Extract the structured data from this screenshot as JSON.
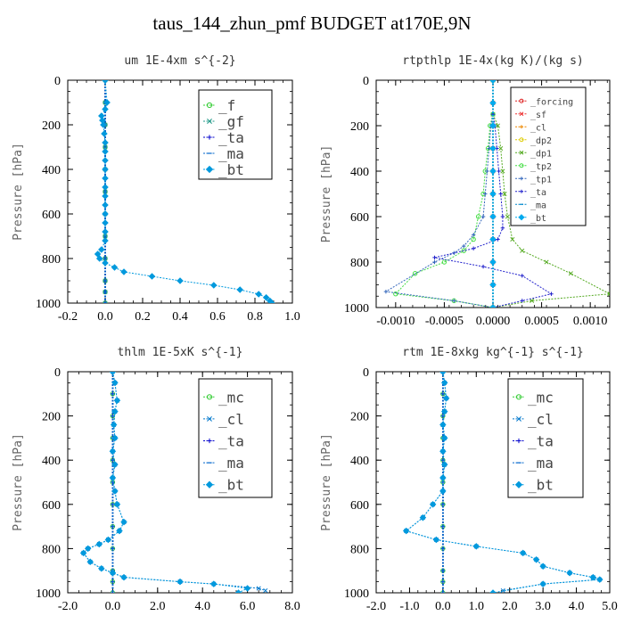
{
  "figure_title": "taus_144_zhun_pmf  BUDGET at170E,9N",
  "chart_data": [
    {
      "type": "line",
      "title": "um  1E-4xm s^{-2}",
      "ylabel": "Pressure [hPa]",
      "xlim": [
        -0.2,
        1.0
      ],
      "ylim": [
        1000,
        0
      ],
      "xticks": [
        "-0.2",
        "0.0",
        "0.2",
        "0.4",
        "0.6",
        "0.8",
        "1.0"
      ],
      "yticks": [
        "0",
        "200",
        "400",
        "600",
        "800",
        "1000"
      ],
      "legend": {
        "placement": "top-right",
        "entries": [
          "_f",
          "_gf",
          "_ta",
          "_ma",
          "_bt"
        ]
      },
      "series": [
        {
          "name": "_f",
          "color": "#33cc33",
          "marker": "circle",
          "x": [
            0,
            0,
            0,
            0,
            0,
            0,
            0,
            0,
            0,
            0,
            0,
            0
          ],
          "y": [
            0,
            100,
            200,
            300,
            400,
            500,
            600,
            700,
            800,
            900,
            950,
            1000
          ]
        },
        {
          "name": "_gf",
          "color": "#229988",
          "marker": "x",
          "x": [
            0,
            0,
            0,
            0,
            0,
            0,
            0,
            0,
            0,
            0,
            0,
            0
          ],
          "y": [
            0,
            100,
            200,
            300,
            400,
            500,
            600,
            700,
            800,
            900,
            950,
            1000
          ]
        },
        {
          "name": "_ta",
          "color": "#0000cc",
          "marker": "plus",
          "x": [
            0,
            0,
            0,
            0,
            0,
            0,
            0,
            0,
            0,
            0,
            0,
            0
          ],
          "y": [
            0,
            100,
            200,
            300,
            400,
            500,
            600,
            700,
            800,
            900,
            950,
            1000
          ]
        },
        {
          "name": "_ma",
          "color": "#0066cc",
          "marker": "dash",
          "x": [
            0,
            0,
            0,
            0,
            0,
            0,
            0,
            0,
            0,
            0,
            0,
            0
          ],
          "y": [
            0,
            100,
            200,
            300,
            400,
            500,
            600,
            700,
            800,
            900,
            950,
            1000
          ]
        },
        {
          "name": "_bt",
          "color": "#0099dd",
          "marker": "diamond",
          "x": [
            0,
            0.01,
            0.0,
            -0.02,
            -0.015,
            -0.01,
            -0.005,
            0.0,
            0.0,
            0.0,
            0.0,
            0.0,
            0.0,
            0.0,
            0.0,
            0.0,
            0.0,
            0.0,
            0.0,
            -0.02,
            -0.04,
            -0.03,
            0.0,
            0.05,
            0.1,
            0.25,
            0.4,
            0.58,
            0.72,
            0.82,
            0.86,
            0.88,
            0.89
          ],
          "y": [
            0,
            100,
            130,
            160,
            180,
            200,
            240,
            280,
            320,
            360,
            400,
            440,
            480,
            520,
            560,
            600,
            640,
            680,
            720,
            760,
            780,
            800,
            820,
            840,
            860,
            880,
            900,
            920,
            940,
            960,
            975,
            990,
            1000
          ]
        }
      ]
    },
    {
      "type": "line",
      "title": "rtpthlp  1E-4x(kg K)/(kg s)",
      "ylabel": "Pressure [hPa]",
      "xlim": [
        -0.0012,
        0.0012
      ],
      "ylim": [
        1000,
        0
      ],
      "xticks": [
        "-0.0010",
        "-0.0005",
        "0.0000",
        "0.0005",
        "0.0010"
      ],
      "yticks": [
        "0",
        "200",
        "400",
        "600",
        "800",
        "1000"
      ],
      "legend": {
        "placement": "top-right",
        "entries": [
          "_forcing",
          "_sf",
          "_cl",
          "_dp2",
          "_dp1",
          "_tp2",
          "_tp1",
          "_ta",
          "_ma",
          "_bt"
        ]
      },
      "series": [
        {
          "name": "_forcing",
          "color": "#dd2222",
          "marker": "circle",
          "x": [
            0,
            0,
            0,
            0,
            0,
            0,
            0,
            0,
            0,
            0,
            0
          ],
          "y": [
            0,
            100,
            200,
            300,
            400,
            500,
            600,
            700,
            800,
            900,
            1000
          ]
        },
        {
          "name": "_sf",
          "color": "#ee3333",
          "marker": "x",
          "x": [
            0,
            0,
            0,
            0,
            0,
            0,
            0,
            0,
            0,
            0,
            0
          ],
          "y": [
            0,
            100,
            200,
            300,
            400,
            500,
            600,
            700,
            800,
            900,
            1000
          ]
        },
        {
          "name": "_cl",
          "color": "#ee8800",
          "marker": "plus",
          "x": [
            0,
            0,
            0,
            0,
            0,
            0,
            0,
            0,
            0,
            0,
            0
          ],
          "y": [
            0,
            100,
            200,
            300,
            400,
            500,
            600,
            700,
            800,
            900,
            1000
          ]
        },
        {
          "name": "_dp2",
          "color": "#ddcc00",
          "marker": "circle",
          "x": [
            0,
            0,
            0,
            0,
            0,
            0,
            0,
            0,
            0,
            0,
            0
          ],
          "y": [
            0,
            100,
            200,
            300,
            400,
            500,
            600,
            700,
            800,
            900,
            1000
          ]
        },
        {
          "name": "_dp1",
          "color": "#55aa22",
          "marker": "x",
          "x": [
            0,
            0,
            5e-05,
            8e-05,
            0.0001,
            0.00012,
            0.00015,
            0.0002,
            0.0003,
            0.00055,
            0.0008,
            0.0012,
            0.0004,
            0
          ],
          "y": [
            0,
            150,
            200,
            300,
            400,
            500,
            600,
            700,
            750,
            800,
            850,
            940,
            970,
            1000
          ]
        },
        {
          "name": "_tp2",
          "color": "#44dd44",
          "marker": "circle",
          "x": [
            0,
            0,
            -3e-05,
            -5e-05,
            -8e-05,
            -0.0001,
            -0.00015,
            -0.0002,
            -0.0003,
            -0.0005,
            -0.0008,
            -0.001,
            -0.0004,
            0
          ],
          "y": [
            0,
            150,
            200,
            300,
            400,
            500,
            600,
            700,
            750,
            800,
            850,
            940,
            970,
            1000
          ]
        },
        {
          "name": "_tp1",
          "color": "#3366bb",
          "marker": "plus",
          "x": [
            0,
            0,
            -2e-05,
            -4e-05,
            -6e-05,
            -8e-05,
            -0.0001,
            -0.0002,
            -0.0003,
            -0.0004,
            -0.0006,
            -0.0011,
            -0.0004,
            0
          ],
          "y": [
            0,
            150,
            200,
            300,
            400,
            500,
            600,
            680,
            730,
            760,
            800,
            930,
            970,
            1000
          ]
        },
        {
          "name": "_ta",
          "color": "#2222cc",
          "marker": "plus",
          "x": [
            0,
            0,
            2e-05,
            4e-05,
            6e-05,
            8e-05,
            0.0001,
            0.0001,
            5e-05,
            -0.0002,
            -0.0006,
            -0.0001,
            0.0003,
            0.0006,
            0.0003,
            0
          ],
          "y": [
            0,
            150,
            200,
            300,
            400,
            500,
            600,
            650,
            700,
            740,
            780,
            820,
            860,
            940,
            970,
            1000
          ]
        },
        {
          "name": "_ma",
          "color": "#0088cc",
          "marker": "dash",
          "x": [
            0,
            0,
            0,
            0,
            0,
            0,
            0,
            0,
            0,
            0,
            0
          ],
          "y": [
            0,
            100,
            200,
            300,
            400,
            500,
            600,
            700,
            800,
            900,
            1000
          ]
        },
        {
          "name": "_bt",
          "color": "#00aaee",
          "marker": "diamond",
          "x": [
            0,
            0,
            0,
            0,
            0,
            0,
            0,
            0,
            0,
            0,
            0
          ],
          "y": [
            0,
            100,
            200,
            300,
            400,
            500,
            600,
            700,
            800,
            900,
            1000
          ]
        }
      ]
    },
    {
      "type": "line",
      "title": "thlm  1E-5xK s^{-1}",
      "ylabel": "Pressure [hPa]",
      "xlim": [
        -2.0,
        8.0
      ],
      "ylim": [
        1000,
        0
      ],
      "xticks": [
        "-2.0",
        "0.0",
        "2.0",
        "4.0",
        "6.0",
        "8.0"
      ],
      "yticks": [
        "0",
        "200",
        "400",
        "600",
        "800",
        "1000"
      ],
      "legend": {
        "placement": "top-right",
        "entries": [
          "_mc",
          "_cl",
          "_ta",
          "_ma",
          "_bt"
        ]
      },
      "series": [
        {
          "name": "_mc",
          "color": "#33cc33",
          "marker": "circle",
          "x": [
            0,
            0,
            0,
            0,
            0,
            0,
            0,
            0,
            0,
            0,
            0,
            0
          ],
          "y": [
            0,
            100,
            200,
            300,
            400,
            500,
            600,
            700,
            800,
            900,
            950,
            1000
          ]
        },
        {
          "name": "_cl",
          "color": "#0077cc",
          "marker": "x",
          "x": [
            0,
            0.1,
            0.2,
            0.1,
            0.05,
            0.1,
            0.0,
            0.1,
            0.0,
            0.1,
            0.2,
            0.5,
            0.3,
            -0.2,
            -0.6,
            -1.1,
            -1.3,
            -1.0,
            -0.5,
            0.0,
            0.5,
            3.0,
            4.5,
            6.5,
            6.8
          ],
          "y": [
            0,
            50,
            130,
            180,
            240,
            300,
            360,
            420,
            480,
            540,
            600,
            680,
            720,
            760,
            780,
            800,
            820,
            860,
            890,
            910,
            930,
            950,
            960,
            980,
            990
          ]
        },
        {
          "name": "_ta",
          "color": "#0000cc",
          "marker": "plus",
          "x": [
            0,
            0,
            0,
            0,
            0,
            0,
            0,
            0,
            0,
            0,
            0,
            0
          ],
          "y": [
            0,
            100,
            200,
            300,
            400,
            500,
            600,
            700,
            800,
            900,
            950,
            1000
          ]
        },
        {
          "name": "_ma",
          "color": "#0066cc",
          "marker": "dash",
          "x": [
            0,
            0,
            0,
            0,
            0,
            0,
            0,
            0,
            0,
            0,
            0,
            0
          ],
          "y": [
            0,
            100,
            200,
            300,
            400,
            500,
            600,
            700,
            800,
            900,
            950,
            1000
          ]
        },
        {
          "name": "_bt",
          "color": "#0099dd",
          "marker": "diamond",
          "x": [
            0,
            0.1,
            0.2,
            0.1,
            0.05,
            0.1,
            0.0,
            0.1,
            0.0,
            0.1,
            0.2,
            0.5,
            0.3,
            -0.2,
            -0.6,
            -1.1,
            -1.3,
            -1.0,
            -0.5,
            0.0,
            0.5,
            3.0,
            4.5,
            6.0,
            5.6
          ],
          "y": [
            0,
            50,
            130,
            180,
            240,
            300,
            360,
            420,
            480,
            540,
            600,
            680,
            720,
            760,
            780,
            800,
            820,
            860,
            890,
            910,
            930,
            950,
            960,
            980,
            1000
          ]
        }
      ]
    },
    {
      "type": "line",
      "title": "rtm  1E-8xkg kg^{-1} s^{-1}",
      "ylabel": "Pressure [hPa]",
      "xlim": [
        -2.0,
        5.0
      ],
      "ylim": [
        1000,
        0
      ],
      "xticks": [
        "-2.0",
        "-1.0",
        "0.0",
        "1.0",
        "2.0",
        "3.0",
        "4.0",
        "5.0"
      ],
      "yticks": [
        "0",
        "200",
        "400",
        "600",
        "800",
        "1000"
      ],
      "legend": {
        "placement": "top-right",
        "entries": [
          "_mc",
          "_cl",
          "_ta",
          "_ma",
          "_bt"
        ]
      },
      "series": [
        {
          "name": "_mc",
          "color": "#33cc33",
          "marker": "circle",
          "x": [
            0,
            0,
            0,
            0,
            0,
            0,
            0,
            0,
            0,
            0,
            0,
            0
          ],
          "y": [
            0,
            100,
            200,
            300,
            400,
            500,
            600,
            700,
            800,
            900,
            950,
            1000
          ]
        },
        {
          "name": "_cl",
          "color": "#0077cc",
          "marker": "x",
          "x": [
            0,
            0.05,
            0.1,
            0.05,
            0.0,
            0.05,
            0.0,
            0.05,
            0.0,
            0.0,
            -0.3,
            -0.6,
            -1.1,
            -0.2,
            1.0,
            2.4,
            2.8,
            3.0,
            3.8,
            4.5,
            4.7,
            3.0,
            1.8
          ],
          "y": [
            0,
            50,
            120,
            180,
            240,
            300,
            360,
            420,
            480,
            540,
            600,
            660,
            720,
            760,
            790,
            820,
            850,
            880,
            910,
            930,
            940,
            960,
            990
          ]
        },
        {
          "name": "_ta",
          "color": "#0000cc",
          "marker": "plus",
          "x": [
            0,
            0,
            0,
            0,
            0,
            0,
            0,
            0,
            0,
            0,
            0,
            0
          ],
          "y": [
            0,
            100,
            200,
            300,
            400,
            500,
            600,
            700,
            800,
            900,
            950,
            1000
          ]
        },
        {
          "name": "_ma",
          "color": "#0066cc",
          "marker": "dash",
          "x": [
            0,
            0,
            0,
            0,
            0,
            0,
            0,
            0,
            0,
            0,
            0,
            0
          ],
          "y": [
            0,
            100,
            200,
            300,
            400,
            500,
            600,
            700,
            800,
            900,
            950,
            1000
          ]
        },
        {
          "name": "_bt",
          "color": "#0099dd",
          "marker": "diamond",
          "x": [
            0,
            0.05,
            0.1,
            0.05,
            0.0,
            0.05,
            0.0,
            0.05,
            0.0,
            0.0,
            -0.3,
            -0.6,
            -1.1,
            -0.2,
            1.0,
            2.4,
            2.8,
            3.0,
            3.8,
            4.5,
            4.7,
            3.0,
            1.5
          ],
          "y": [
            0,
            50,
            120,
            180,
            240,
            300,
            360,
            420,
            480,
            540,
            600,
            660,
            720,
            760,
            790,
            820,
            850,
            880,
            910,
            930,
            940,
            960,
            1000
          ]
        }
      ]
    }
  ]
}
